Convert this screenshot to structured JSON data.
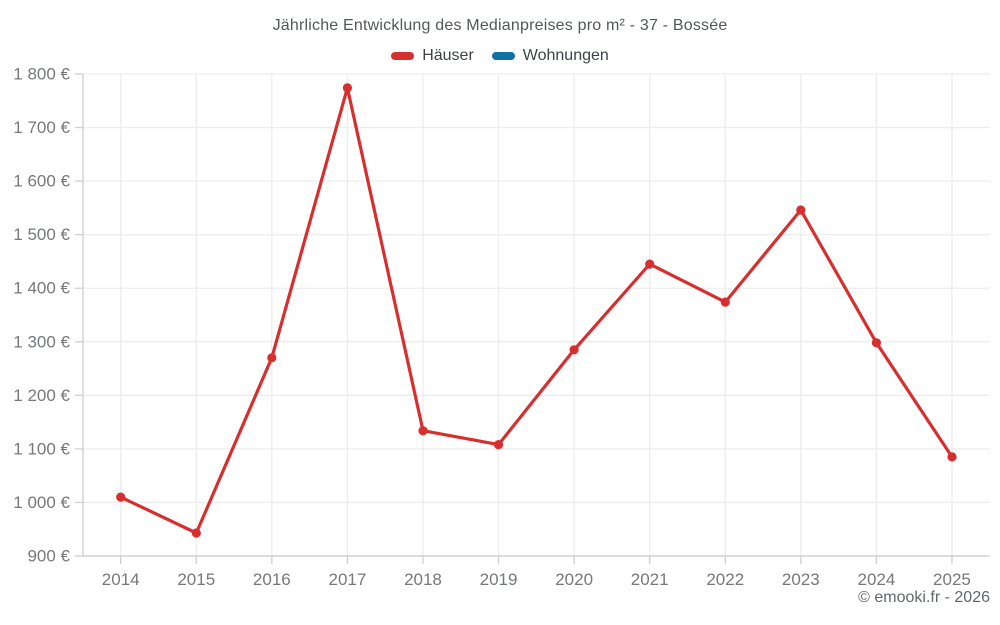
{
  "title": "Jährliche Entwicklung des Medianpreises pro m² - 37 - Bossée",
  "attribution": "© emooki.fr - 2026",
  "legend": {
    "items": [
      {
        "id": "hauser",
        "label": "Häuser",
        "color": "#d62f2f"
      },
      {
        "id": "wohnungen",
        "label": "Wohnungen",
        "color": "#1071a5"
      }
    ]
  },
  "colors": {
    "series_hauser": "#d62f2f",
    "series_wohnungen": "#1071a5",
    "gridline": "#ededed",
    "axis_line": "#cdd0d2",
    "tick_label": "#76787a",
    "title_text": "#54575a",
    "background": "#ffffff"
  },
  "chart_data": {
    "type": "line",
    "title": "Jährliche Entwicklung des Medianpreises pro m² - 37 - Bossée",
    "xlabel": "",
    "ylabel": "",
    "categories": [
      "2014",
      "2015",
      "2016",
      "2017",
      "2018",
      "2019",
      "2020",
      "2021",
      "2022",
      "2023",
      "2024",
      "2025"
    ],
    "series": [
      {
        "name": "Häuser",
        "color": "#d62f2f",
        "values": [
          1010,
          943,
          1270,
          1774,
          1134,
          1108,
          1285,
          1445,
          1374,
          1546,
          1298,
          1085
        ]
      },
      {
        "name": "Wohnungen",
        "color": "#1071a5",
        "values": []
      }
    ],
    "ylim": [
      900,
      1800
    ],
    "y_ticks": [
      900,
      1000,
      1100,
      1200,
      1300,
      1400,
      1500,
      1600,
      1700,
      1800
    ],
    "y_tick_labels": [
      "900 €",
      "1 000 €",
      "1 100 €",
      "1 200 €",
      "1 300 €",
      "1 400 €",
      "1 500 €",
      "1 600 €",
      "1 700 €",
      "1 800 €"
    ],
    "grid": true,
    "legend_position": "top",
    "marker": "circle"
  }
}
